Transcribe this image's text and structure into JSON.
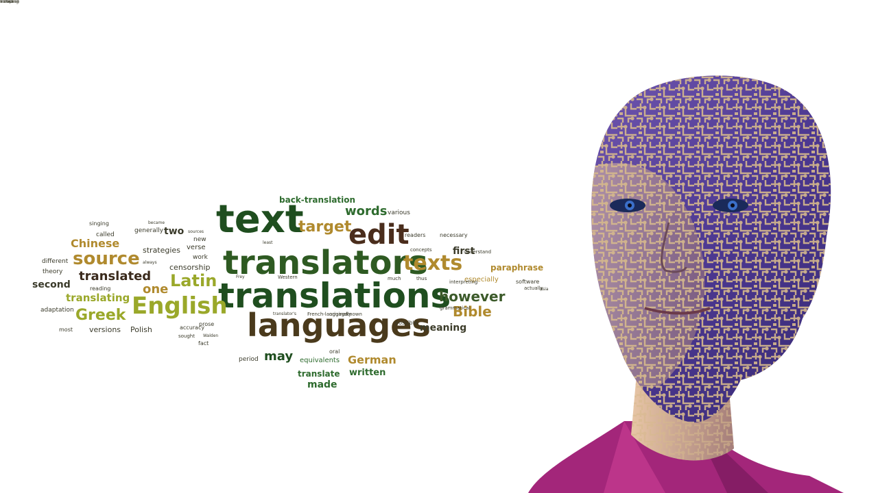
{
  "scene": {
    "type": "illustration",
    "subject": "word-cloud-and-circuit-robot-head",
    "colors": {
      "background": "#ffffff",
      "word_dark_green": "#1f4e1f",
      "word_green": "#2e6b2e",
      "word_olive": "#6b8a1e",
      "word_brown": "#4a2d1c",
      "word_gold": "#b08a2e",
      "word_dark": "#333333",
      "face_purple": "#5a3d9a",
      "circuit_tan": "#d6b98c",
      "shirt_magenta": "#a3267a"
    }
  },
  "word_cloud": {
    "words": [
      {
        "text": "text",
        "color": "#1f4e1f",
        "size": 56
      },
      {
        "text": "translators",
        "color": "#2e5a22",
        "size": 48
      },
      {
        "text": "translations",
        "color": "#1f4e1f",
        "size": 50
      },
      {
        "text": "languages",
        "color": "#4a3a1c",
        "size": 46
      },
      {
        "text": "edit",
        "color": "#4a2d1c",
        "size": 40
      },
      {
        "text": "texts",
        "color": "#b08a2e",
        "size": 30
      },
      {
        "text": "English",
        "color": "#9aa82a",
        "size": 34
      },
      {
        "text": "source",
        "color": "#b08a2e",
        "size": 26
      },
      {
        "text": "Latin",
        "color": "#9aa82a",
        "size": 24
      },
      {
        "text": "Greek",
        "color": "#9aa82a",
        "size": 22
      },
      {
        "text": "target",
        "color": "#b08a2e",
        "size": 22
      },
      {
        "text": "words",
        "color": "#2e6b2e",
        "size": 18
      },
      {
        "text": "however",
        "color": "#3c5a2a",
        "size": 20
      },
      {
        "text": "Bible",
        "color": "#b08a2e",
        "size": 20
      },
      {
        "text": "translated",
        "color": "#3a2a1c",
        "size": 18
      },
      {
        "text": "Chinese",
        "color": "#b08a2e",
        "size": 16
      },
      {
        "text": "translating",
        "color": "#9aa82a",
        "size": 15
      },
      {
        "text": "one",
        "color": "#b08a2e",
        "size": 18
      },
      {
        "text": "second",
        "color": "#3a3a2a",
        "size": 14
      },
      {
        "text": "may",
        "color": "#1f4e1f",
        "size": 18
      },
      {
        "text": "German",
        "color": "#b08a2e",
        "size": 16
      },
      {
        "text": "meaning",
        "color": "#3c3c2a",
        "size": 14
      },
      {
        "text": "written",
        "color": "#2e6b2e",
        "size": 13
      },
      {
        "text": "made",
        "color": "#2e6b2e",
        "size": 14
      },
      {
        "text": "translate",
        "color": "#2e6b2e",
        "size": 12
      },
      {
        "text": "first",
        "color": "#3a3a2a",
        "size": 14
      },
      {
        "text": "paraphrase",
        "color": "#b08a2e",
        "size": 12
      },
      {
        "text": "back-translation",
        "color": "#2e6b2e",
        "size": 12
      },
      {
        "text": "two",
        "color": "#3a3a2a",
        "size": 14
      },
      {
        "text": "versions",
        "color": "#3a3a2a",
        "size": 11
      },
      {
        "text": "Polish",
        "color": "#3a3a2a",
        "size": 11
      },
      {
        "text": "censorship",
        "color": "#3a3a2a",
        "size": 11
      },
      {
        "text": "strategies",
        "color": "#3a3a2a",
        "size": 11
      },
      {
        "text": "verse",
        "color": "#3a3a2a",
        "size": 10
      },
      {
        "text": "especially",
        "color": "#b08a2e",
        "size": 10
      },
      {
        "text": "equivalents",
        "color": "#2e6b2e",
        "size": 10
      },
      {
        "text": "period",
        "color": "#3a3a2a",
        "size": 9
      },
      {
        "text": "adaptation",
        "color": "#3a3a2a",
        "size": 9
      },
      {
        "text": "theory",
        "color": "#3a3a2a",
        "size": 9
      },
      {
        "text": "different",
        "color": "#3a3a2a",
        "size": 9
      },
      {
        "text": "singing",
        "color": "#3a3a2a",
        "size": 8
      },
      {
        "text": "called",
        "color": "#3a3a2a",
        "size": 9
      },
      {
        "text": "generally",
        "color": "#3a3a2a",
        "size": 9
      },
      {
        "text": "various",
        "color": "#3a3a2a",
        "size": 9
      },
      {
        "text": "readers",
        "color": "#3a3a2a",
        "size": 8
      },
      {
        "text": "necessary",
        "color": "#3a3a2a",
        "size": 8
      },
      {
        "text": "concepts",
        "color": "#3a3a2a",
        "size": 7
      },
      {
        "text": "possible",
        "color": "#3a3a2a",
        "size": 8
      },
      {
        "text": "grammatical",
        "color": "#3a3a2a",
        "size": 7
      },
      {
        "text": "software",
        "color": "#3a3a2a",
        "size": 8
      },
      {
        "text": "oral",
        "color": "#3a3a2a",
        "size": 8
      },
      {
        "text": "fact",
        "color": "#3a3a2a",
        "size": 8
      },
      {
        "text": "prose",
        "color": "#3a3a2a",
        "size": 8
      },
      {
        "text": "accuracy",
        "color": "#3a3a2a",
        "size": 8
      },
      {
        "text": "sought",
        "color": "#3a3a2a",
        "size": 7
      },
      {
        "text": "work",
        "color": "#3a3a2a",
        "size": 9
      },
      {
        "text": "new",
        "color": "#3a3a2a",
        "size": 9
      },
      {
        "text": "reading",
        "color": "#3a3a2a",
        "size": 8
      },
      {
        "text": "most",
        "color": "#3a3a2a",
        "size": 8
      },
      {
        "text": "French-language",
        "color": "#3a3a2a",
        "size": 7
      },
      {
        "text": "originally",
        "color": "#3a3a2a",
        "size": 7
      },
      {
        "text": "known",
        "color": "#3a3a2a",
        "size": 7
      },
      {
        "text": "much",
        "color": "#3a3a2a",
        "size": 7
      },
      {
        "text": "thus",
        "color": "#3a3a2a",
        "size": 7
      },
      {
        "text": "Western",
        "color": "#3a3a2a",
        "size": 7
      },
      {
        "text": "understand",
        "color": "#3a3a2a",
        "size": 7
      },
      {
        "text": "interpreting",
        "color": "#3a3a2a",
        "size": 7
      },
      {
        "text": "actually",
        "color": "#3a3a2a",
        "size": 7
      },
      {
        "text": "Asia",
        "color": "#3a3a2a",
        "size": 6
      },
      {
        "text": "Frey",
        "color": "#3a3a2a",
        "size": 6
      },
      {
        "text": "least",
        "color": "#3a3a2a",
        "size": 6
      },
      {
        "text": "always",
        "color": "#3a3a2a",
        "size": 6
      },
      {
        "text": "sources",
        "color": "#3a3a2a",
        "size": 6
      },
      {
        "text": "became",
        "color": "#3a3a2a",
        "size": 6
      },
      {
        "text": "translator's",
        "color": "#3a3a2a",
        "size": 6
      },
      {
        "text": "Walden",
        "color": "#3a3a2a",
        "size": 6
      },
      {
        "text": "across",
        "color": "#3a3a2a",
        "size": 6
      },
      {
        "text": "European",
        "color": "#3a3a2a",
        "size": 6
      },
      {
        "text": "including",
        "color": "#3a3a2a",
        "size": 6
      }
    ]
  },
  "portrait": {
    "description_name": "robot-face-with-circuit-overlay"
  }
}
